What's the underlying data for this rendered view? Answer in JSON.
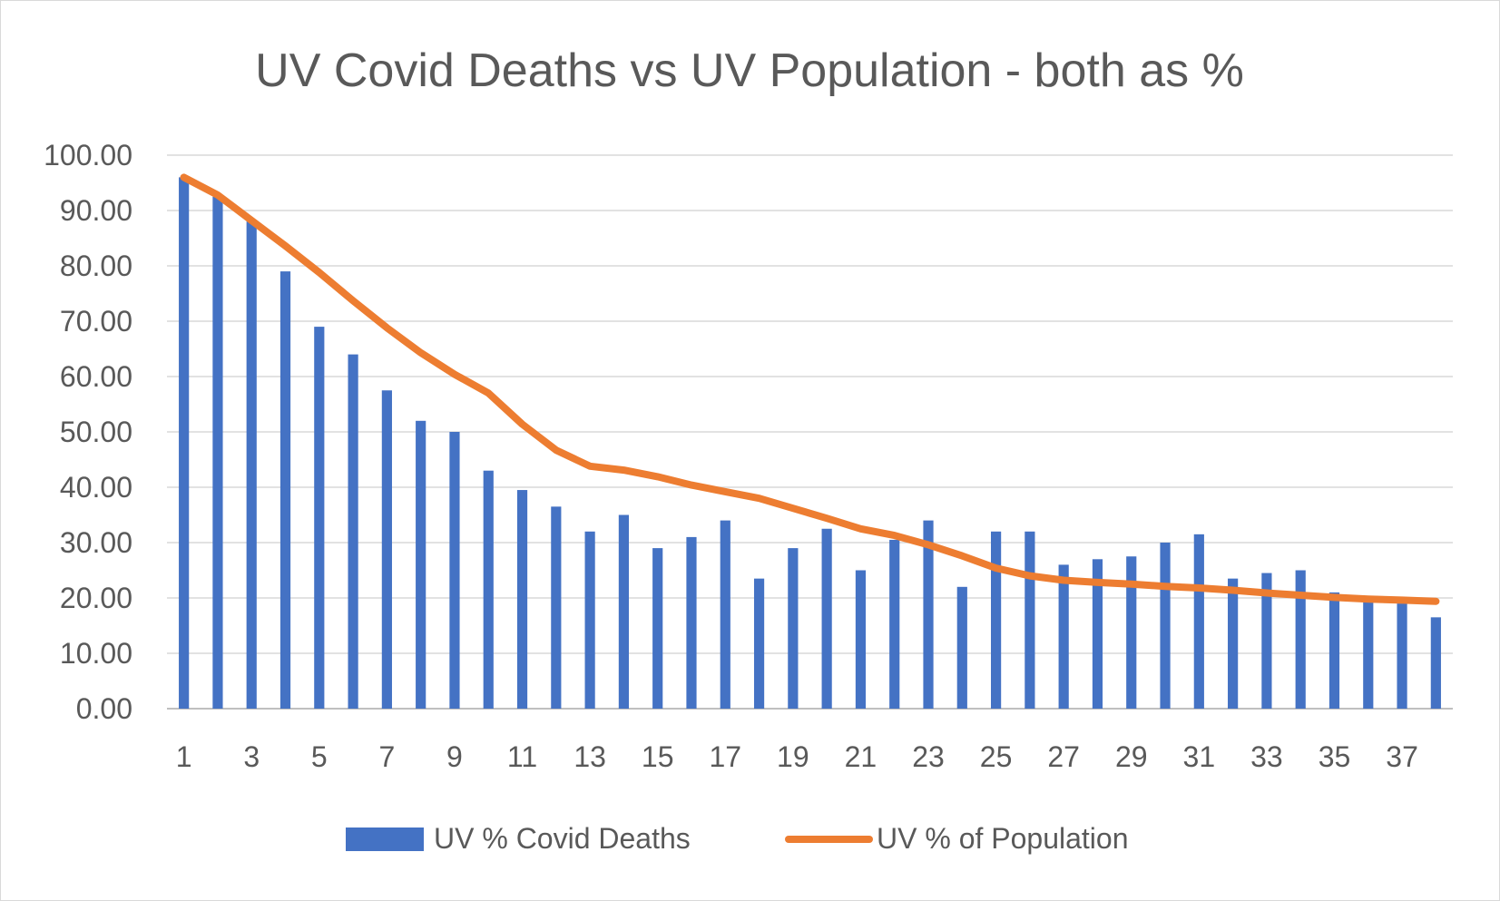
{
  "chart_data": {
    "type": "bar",
    "title": "UV Covid Deaths vs UV Population - both as %",
    "xlabel": "",
    "ylabel": "",
    "ylim": [
      0,
      100
    ],
    "y_ticks": [
      "0.00",
      "10.00",
      "20.00",
      "30.00",
      "40.00",
      "50.00",
      "60.00",
      "70.00",
      "80.00",
      "90.00",
      "100.00"
    ],
    "grid": true,
    "legend_position": "bottom",
    "categories": [
      1,
      2,
      3,
      4,
      5,
      6,
      7,
      8,
      9,
      10,
      11,
      12,
      13,
      14,
      15,
      16,
      17,
      18,
      19,
      20,
      21,
      22,
      23,
      24,
      25,
      26,
      27,
      28,
      29,
      30,
      31,
      32,
      33,
      34,
      35,
      36,
      37,
      38
    ],
    "x_tick_labels": [
      "1",
      "3",
      "5",
      "7",
      "9",
      "11",
      "13",
      "15",
      "17",
      "19",
      "21",
      "23",
      "25",
      "27",
      "29",
      "31",
      "33",
      "35",
      "37"
    ],
    "series": [
      {
        "name": "UV % Covid Deaths",
        "type": "bar",
        "color": "#4472C4",
        "values": [
          96.0,
          92.5,
          88.0,
          79.0,
          69.0,
          64.0,
          57.5,
          52.0,
          50.0,
          43.0,
          39.5,
          36.5,
          32.0,
          35.0,
          29.0,
          31.0,
          34.0,
          23.5,
          29.0,
          32.5,
          25.0,
          30.5,
          34.0,
          22.0,
          32.0,
          32.0,
          26.0,
          27.0,
          27.5,
          30.0,
          31.5,
          23.5,
          24.5,
          25.0,
          21.0,
          20.0,
          19.0,
          16.5
        ]
      },
      {
        "name": "UV % of Population",
        "type": "line",
        "color": "#ED7D31",
        "values": [
          96.0,
          92.8,
          88.2,
          83.6,
          78.8,
          73.7,
          68.8,
          64.3,
          60.4,
          57.0,
          51.4,
          46.7,
          43.8,
          43.1,
          41.9,
          40.4,
          39.2,
          38.0,
          36.2,
          34.4,
          32.5,
          31.3,
          29.6,
          27.6,
          25.4,
          24.0,
          23.2,
          22.8,
          22.5,
          22.1,
          21.8,
          21.4,
          20.9,
          20.5,
          20.1,
          19.8,
          19.6,
          19.4
        ]
      }
    ]
  }
}
